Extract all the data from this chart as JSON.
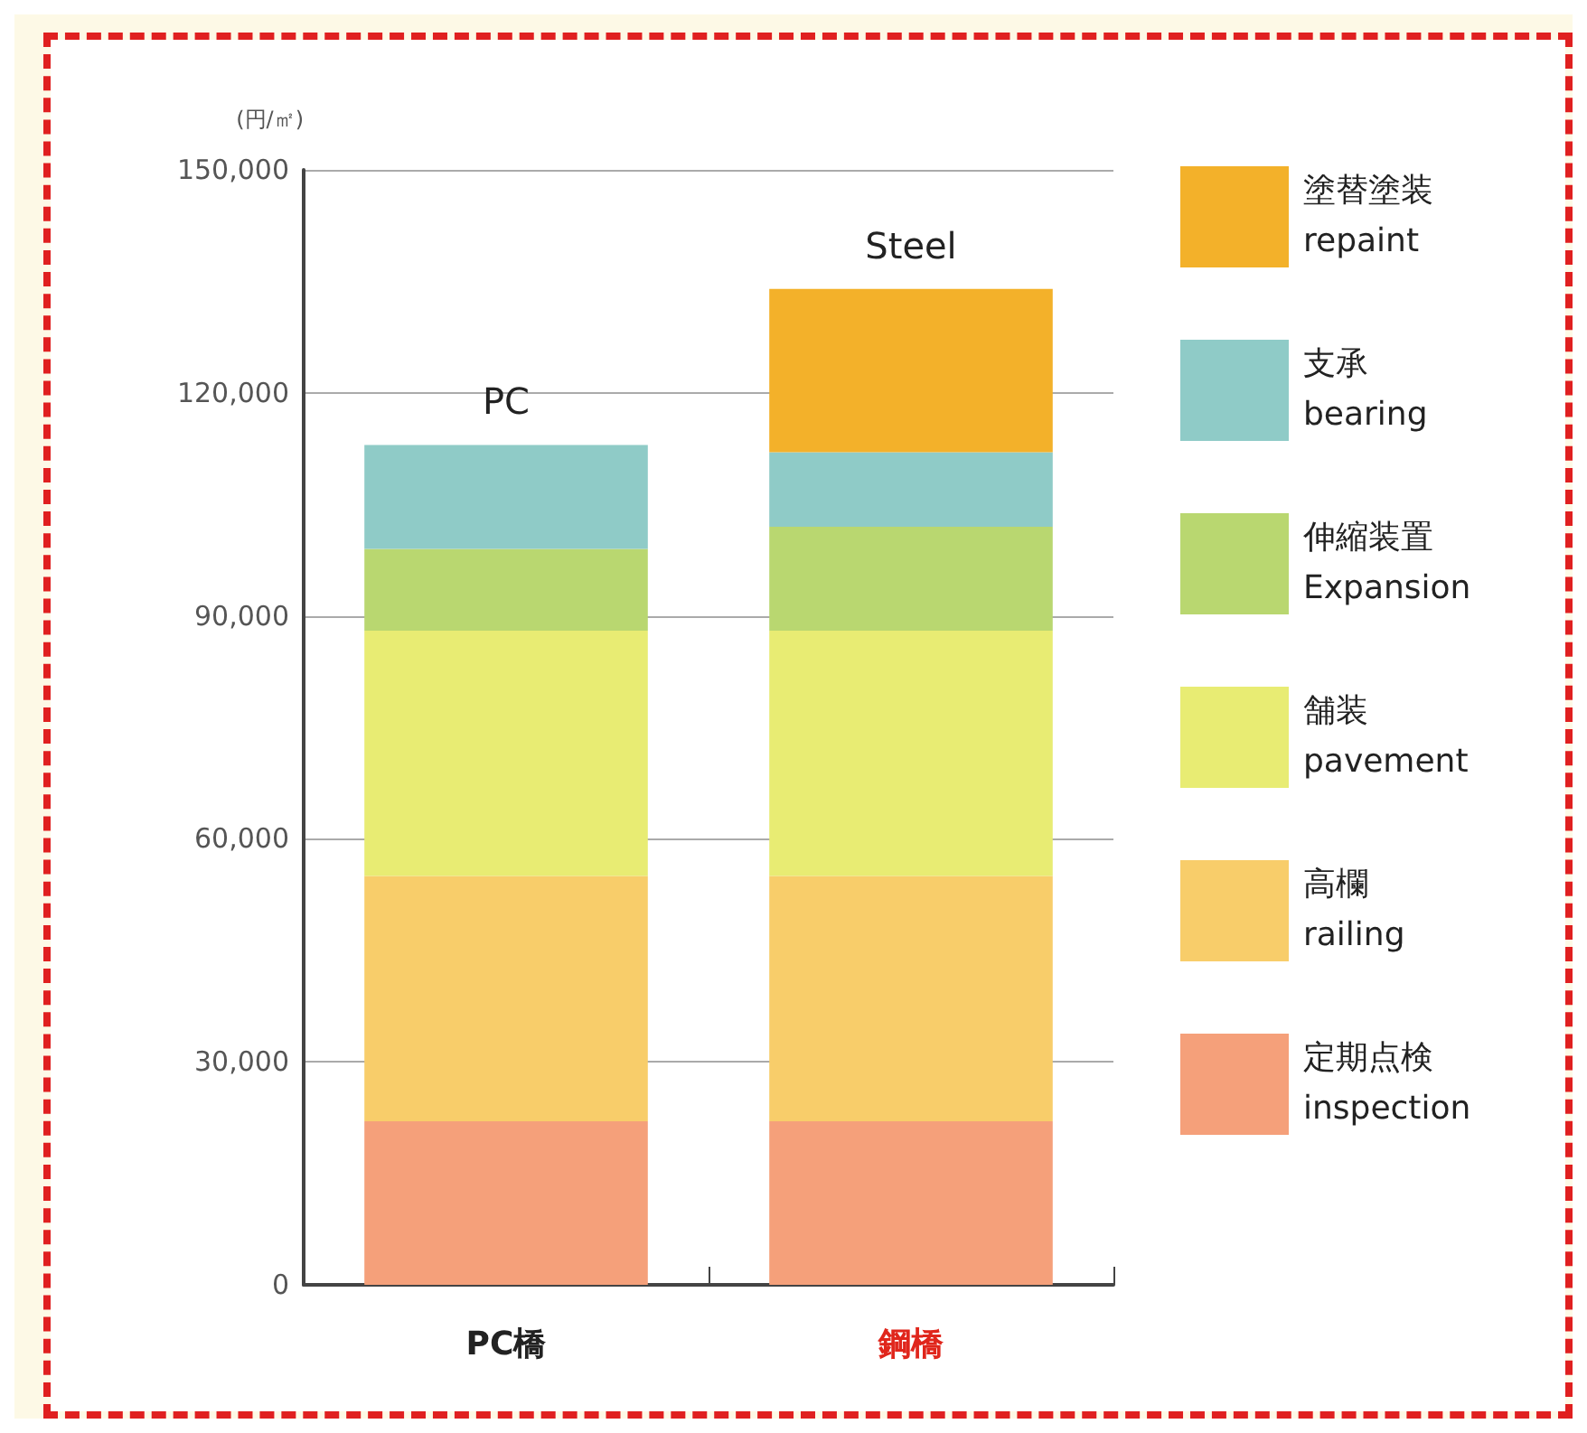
{
  "chart_data": {
    "type": "bar",
    "stacked": true,
    "ylabel": "(円/㎡)",
    "categories": [
      "PC橋",
      "鋼橋"
    ],
    "ylim": [
      0,
      150000
    ],
    "yticks": [
      {
        "value": 0,
        "label": "0"
      },
      {
        "value": 30000,
        "label": "30,000"
      },
      {
        "value": 60000,
        "label": "60,000"
      },
      {
        "value": 90000,
        "label": "90,000"
      },
      {
        "value": 120000,
        "label": "120,000"
      },
      {
        "value": 150000,
        "label": "150,000"
      }
    ],
    "grid": "y",
    "legend": "right",
    "series": [
      {
        "name": "定期点検\ninspection",
        "color": "#f5a07a",
        "values": [
          22000,
          22000
        ]
      },
      {
        "name": "高欄\nrailing",
        "color": "#f8cd6a",
        "values": [
          33000,
          33000
        ]
      },
      {
        "name": "舗装\npavement",
        "color": "#e8ec73",
        "values": [
          33000,
          33000
        ]
      },
      {
        "name": "伸縮装置\nExpansion",
        "color": "#b9d770",
        "values": [
          11000,
          14000
        ]
      },
      {
        "name": "支承\nbearing",
        "color": "#8fcbc7",
        "values": [
          14000,
          10000
        ]
      },
      {
        "name": "塗替塗装\nrepaint",
        "color": "#f3b12a",
        "values": [
          null,
          22000
        ]
      }
    ],
    "annotations": [
      {
        "text": "PC",
        "x": "PC橋",
        "y": 113000
      },
      {
        "text": "Steel",
        "x": "鋼橋",
        "y": 134000
      }
    ]
  }
}
